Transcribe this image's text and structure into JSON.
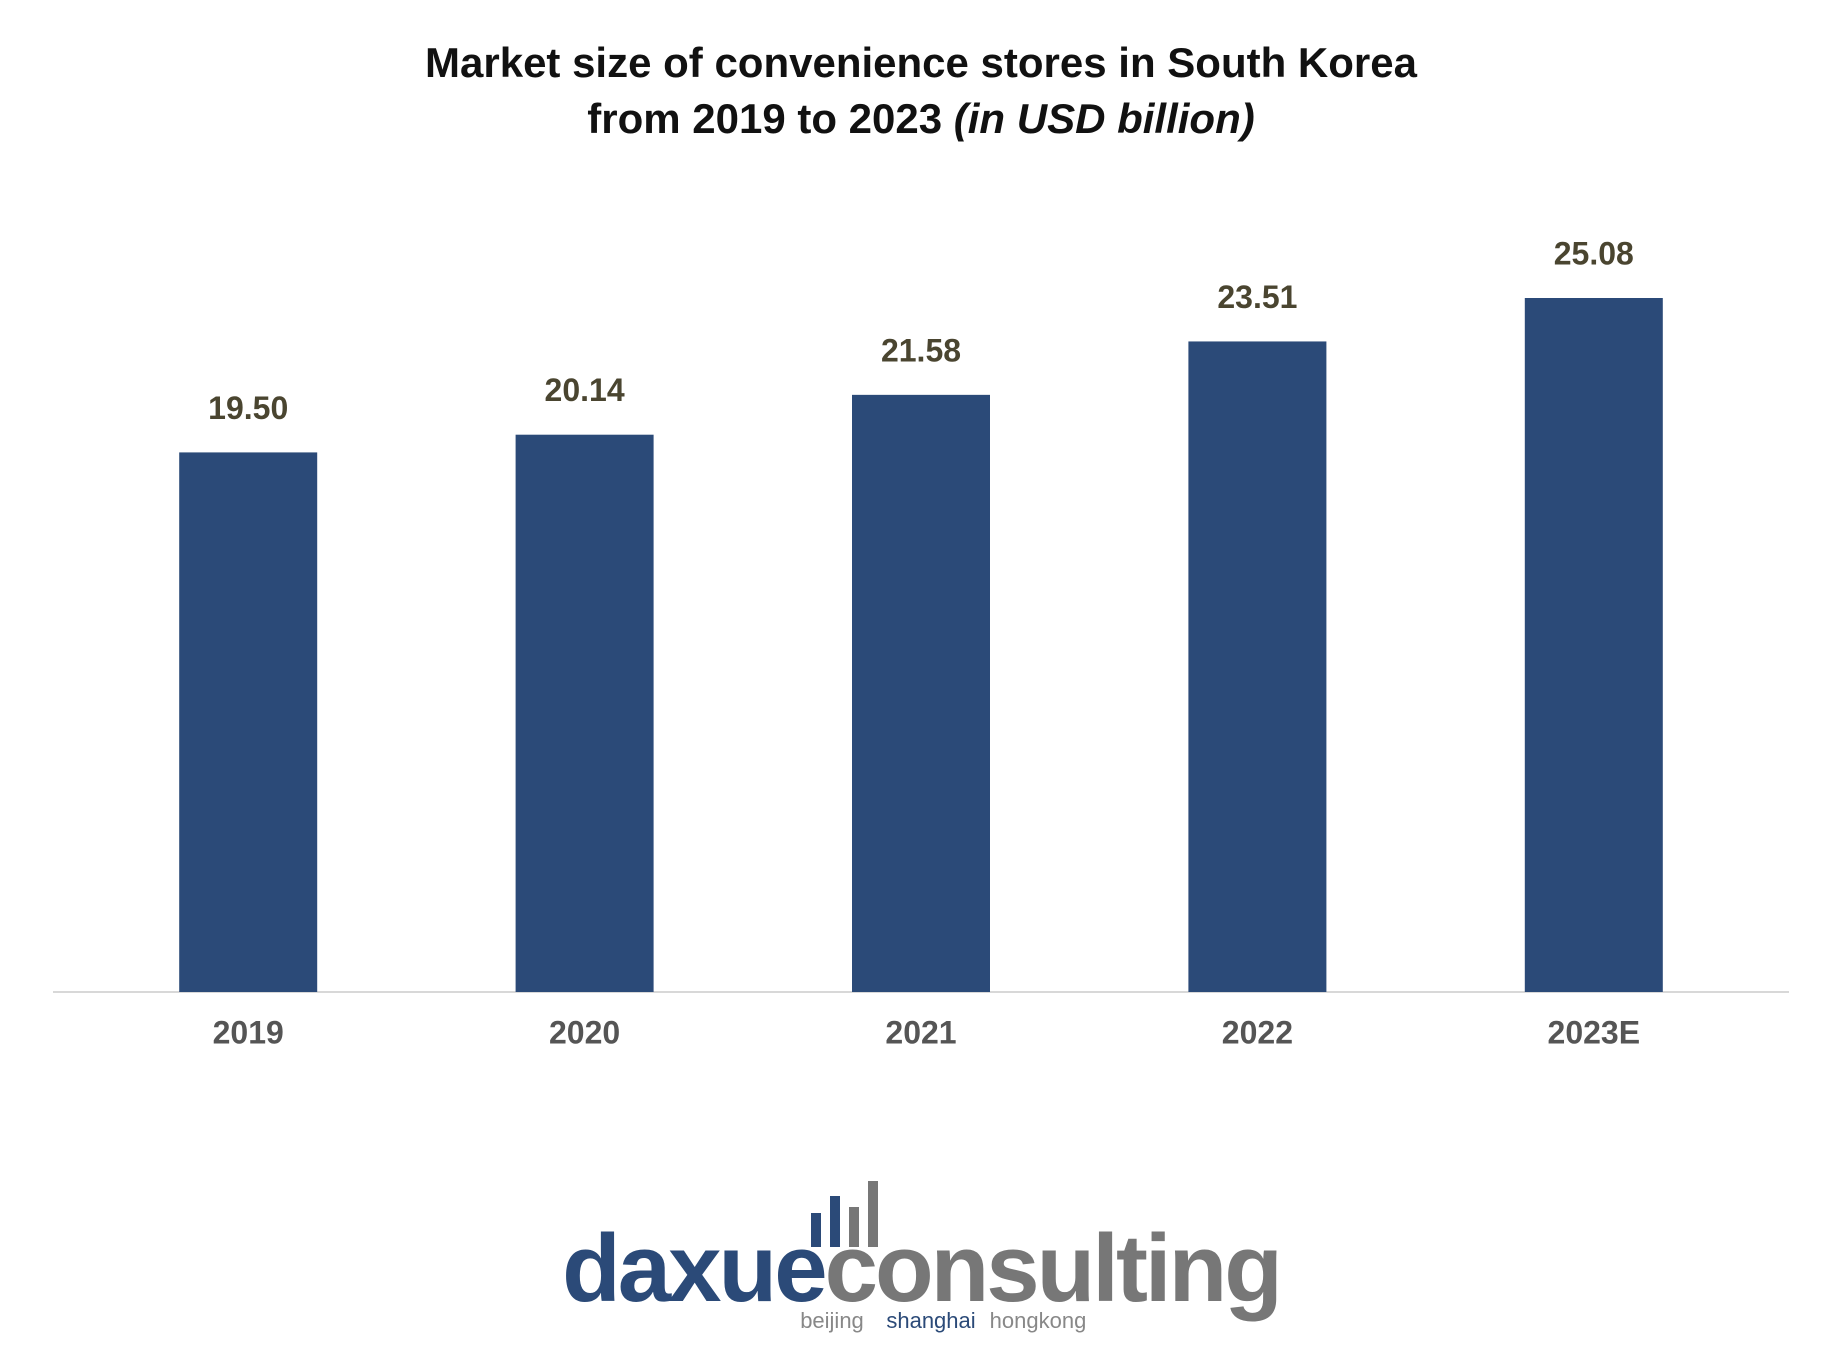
{
  "chart_data": {
    "type": "bar",
    "title": [
      "Market size of convenience stores in South Korea",
      "from 2019 to 2023"
    ],
    "unit": "(in USD billion)",
    "categories": [
      "2019",
      "2020",
      "2021",
      "2022",
      "2023E"
    ],
    "values": [
      19.5,
      20.14,
      21.58,
      23.51,
      25.08
    ],
    "value_labels": [
      "19.50",
      "20.14",
      "21.58",
      "23.51",
      "25.08"
    ],
    "color": "#2b4a78"
  },
  "logo": {
    "brand": "daxue",
    "brand_rest": "consulting",
    "cities": [
      "beijing",
      "shanghai",
      "hongkong"
    ]
  }
}
